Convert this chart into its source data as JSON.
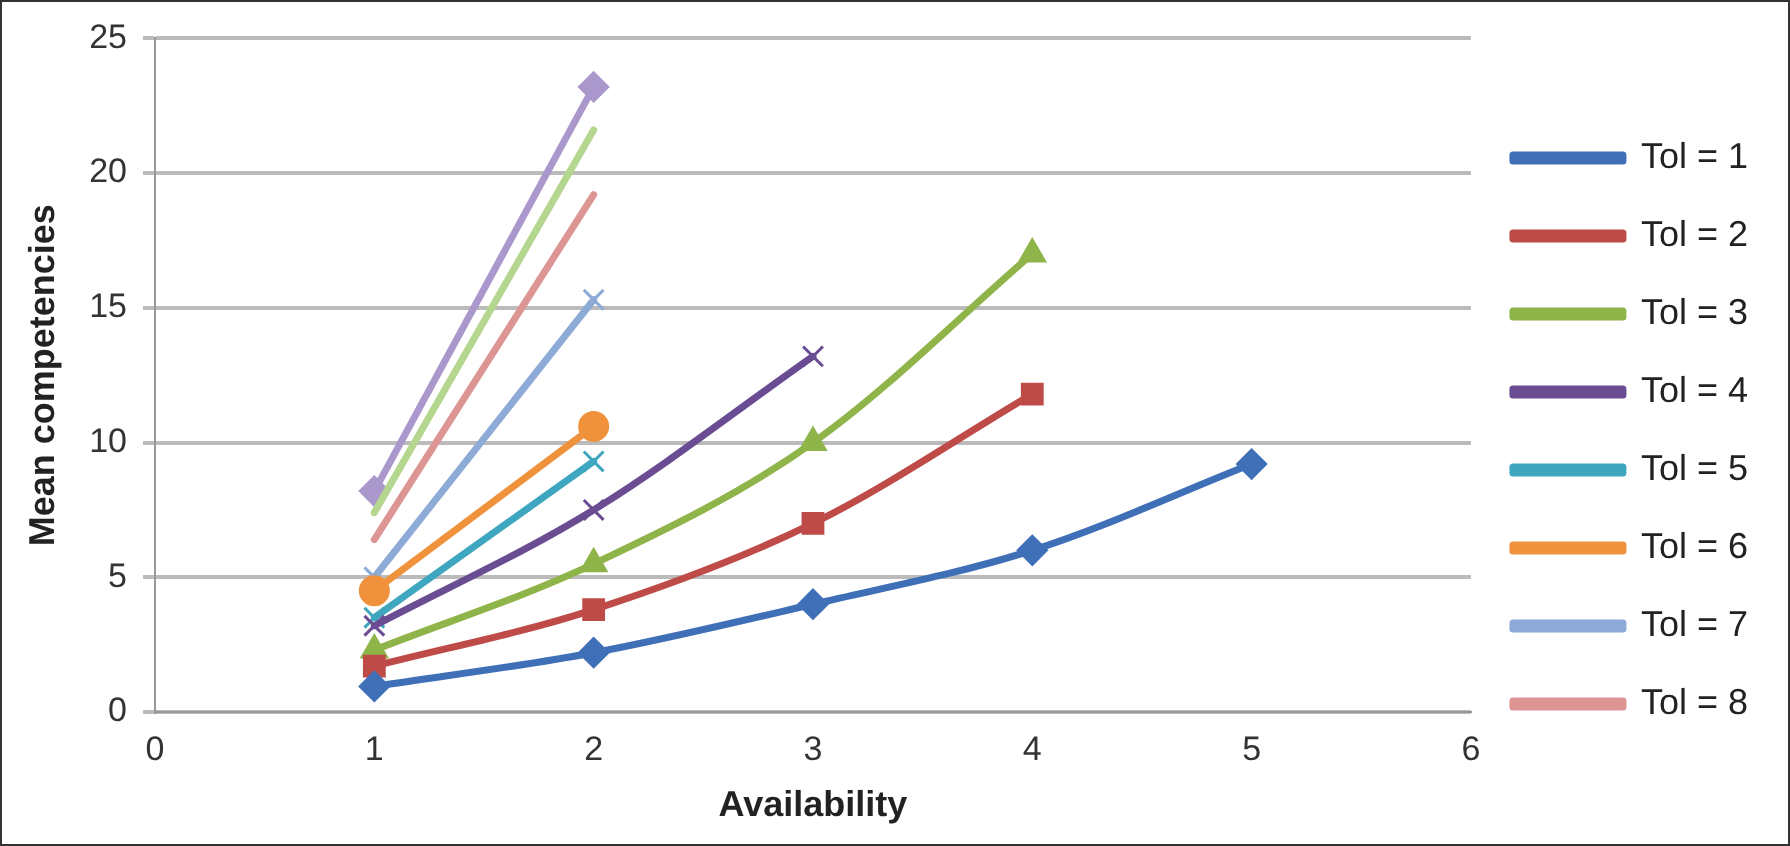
{
  "chart_data": {
    "type": "line",
    "xlabel": "Availability",
    "ylabel": "Mean competencies",
    "xlim": [
      0,
      6
    ],
    "xticks": [
      0,
      1,
      2,
      3,
      4,
      5,
      6
    ],
    "ylim": [
      0,
      25
    ],
    "yticks": [
      0,
      5,
      10,
      15,
      20,
      25
    ],
    "grid": "y",
    "legend": "right",
    "line_style": "solid",
    "x": [
      1,
      2,
      3,
      4,
      5
    ],
    "series": [
      {
        "name": "Tol = 1",
        "color": "#3f6fb7",
        "marker": "diamond",
        "values": [
          0.95,
          2.2,
          4.0,
          6.0,
          9.2
        ]
      },
      {
        "name": "Tol = 2",
        "color": "#be4b48",
        "marker": "square",
        "values": [
          1.7,
          3.8,
          7.0,
          11.8,
          null
        ]
      },
      {
        "name": "Tol = 3",
        "color": "#8fb449",
        "marker": "triangle",
        "values": [
          2.3,
          5.5,
          10.0,
          17.0,
          null
        ]
      },
      {
        "name": "Tol = 4",
        "color": "#6a4c93",
        "marker": "cross",
        "values": [
          3.2,
          7.5,
          13.2,
          null,
          null
        ]
      },
      {
        "name": "Tol = 5",
        "color": "#3fa6bf",
        "marker": "cross",
        "values": [
          3.5,
          9.3,
          null,
          null,
          null
        ]
      },
      {
        "name": "Tol = 6",
        "color": "#f0913c",
        "marker": "circle",
        "values": [
          4.5,
          10.6,
          null,
          null,
          null
        ]
      },
      {
        "name": "Tol = 7",
        "color": "#8eaad6",
        "marker": "cross",
        "values": [
          5.0,
          15.3,
          null,
          null,
          null
        ]
      },
      {
        "name": "Tol = 8",
        "color": "#dc9593",
        "marker": "none",
        "values": [
          6.4,
          19.2,
          null,
          null,
          null
        ]
      },
      {
        "color": "#b5d68f",
        "marker": "none",
        "values": [
          7.4,
          21.6,
          null,
          null,
          null
        ]
      },
      {
        "color": "#aa98cc",
        "marker": "diamond",
        "values": [
          8.2,
          23.2,
          null,
          null,
          null
        ]
      }
    ]
  }
}
